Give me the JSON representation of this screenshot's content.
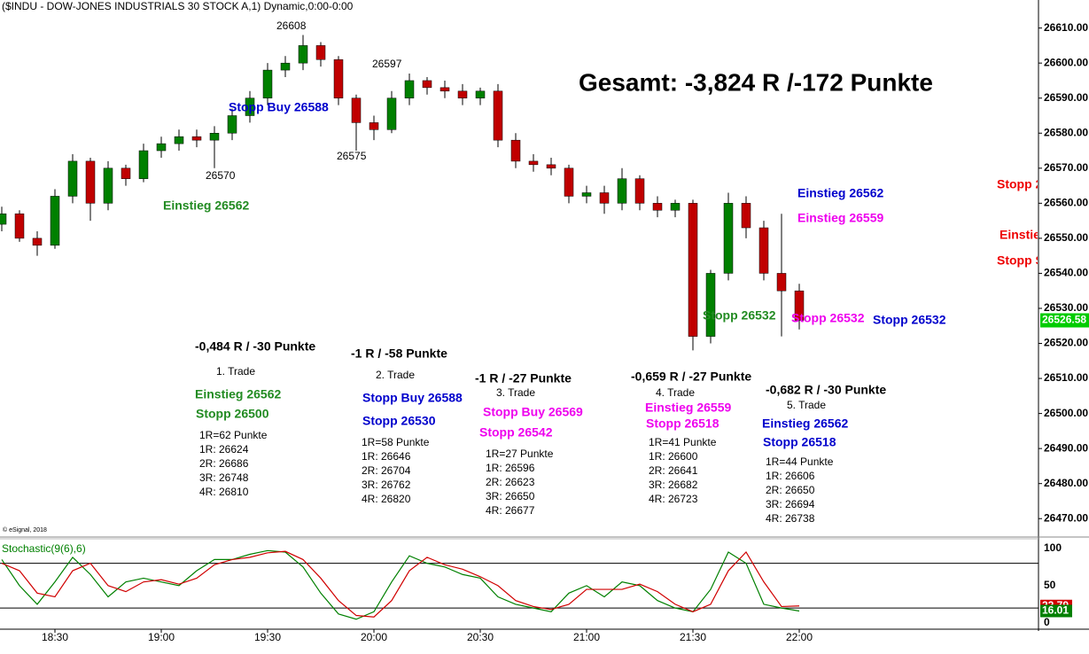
{
  "chart_data": [
    {
      "type": "candlestick",
      "title": "($INDU - DOW-JONES INDUSTRIALS 30 STOCK A,1) Dynamic,0:00-0:00",
      "categories": [
        "18:15",
        "18:20",
        "18:25",
        "18:30",
        "18:35",
        "18:40",
        "18:45",
        "18:50",
        "18:55",
        "19:00",
        "19:05",
        "19:10",
        "19:15",
        "19:20",
        "19:25",
        "19:30",
        "19:35",
        "19:40",
        "19:45",
        "19:50",
        "19:55",
        "20:00",
        "20:05",
        "20:10",
        "20:15",
        "20:20",
        "20:25",
        "20:30",
        "20:35",
        "20:40",
        "20:45",
        "20:50",
        "20:55",
        "21:00",
        "21:05",
        "21:10",
        "21:15",
        "21:20",
        "21:25",
        "21:30",
        "21:35",
        "21:40",
        "21:45",
        "21:50",
        "21:55",
        "22:00"
      ],
      "open": [
        26554,
        26557,
        26550,
        26548,
        26562,
        26572,
        26560,
        26570,
        26567,
        26575,
        26577,
        26579,
        26578,
        26580,
        26585,
        26590,
        26598,
        26600,
        26605,
        26601,
        26590,
        26583,
        26581,
        26590,
        26595,
        26593,
        26592,
        26590,
        26592,
        26578,
        26572,
        26571,
        26570,
        26562,
        26563,
        26560,
        26567,
        26560,
        26558,
        26560,
        26522,
        26540,
        26560,
        26553,
        26540,
        26535
      ],
      "high": [
        26559,
        26558,
        26552,
        26564,
        26574,
        26573,
        26572,
        26571,
        26577,
        26579,
        26581,
        26581,
        26582,
        26587,
        26592,
        26600,
        26602,
        26608,
        26606,
        26602,
        26591,
        26585,
        26592,
        26597,
        26596,
        26595,
        26594,
        26593,
        26594,
        26580,
        26574,
        26573,
        26571,
        26565,
        26565,
        26570,
        26568,
        26562,
        26561,
        26561,
        26541,
        26563,
        26562,
        26555,
        26557,
        26537
      ],
      "low": [
        26552,
        26549,
        26545,
        26547,
        26560,
        26555,
        26558,
        26565,
        26566,
        26573,
        26575,
        26576,
        26570,
        26578,
        26583,
        26588,
        26596,
        26598,
        26599,
        26588,
        26575,
        26578,
        26580,
        26588,
        26591,
        26590,
        26588,
        26588,
        26576,
        26570,
        26569,
        26568,
        26560,
        26560,
        26557,
        26558,
        26558,
        26556,
        26556,
        26518,
        26520,
        26538,
        26550,
        26538,
        26522,
        26524
      ],
      "close": [
        26557,
        26550,
        26548,
        26562,
        26572,
        26560,
        26570,
        26567,
        26575,
        26577,
        26579,
        26578,
        26580,
        26585,
        26590,
        26598,
        26600,
        26605,
        26601,
        26590,
        26583,
        26581,
        26590,
        26595,
        26593,
        26592,
        26590,
        26592,
        26578,
        26572,
        26571,
        26570,
        26562,
        26563,
        26560,
        26567,
        26560,
        26558,
        26560,
        26522,
        26540,
        26560,
        26553,
        26540,
        26535,
        26526.58
      ],
      "up_color": "#008000",
      "down_color": "#c00000",
      "ylim": [
        26465,
        26618
      ],
      "yticks": [
        {
          "value": 26470,
          "label": "26470.00"
        },
        {
          "value": 26480,
          "label": "26480.00"
        },
        {
          "value": 26490,
          "label": "26490.00"
        },
        {
          "value": 26500,
          "label": "26500.00"
        },
        {
          "value": 26510,
          "label": "26510.00"
        },
        {
          "value": 26520,
          "label": "26520.00"
        },
        {
          "value": 26530,
          "label": "26530.00"
        },
        {
          "value": 26540,
          "label": "26540.00"
        },
        {
          "value": 26550,
          "label": "26550.00"
        },
        {
          "value": 26560,
          "label": "26560.00"
        },
        {
          "value": 26570,
          "label": "26570.00"
        },
        {
          "value": 26580,
          "label": "26580.00"
        },
        {
          "value": 26590,
          "label": "26590.00"
        },
        {
          "value": 26600,
          "label": "26600.00"
        },
        {
          "value": 26610,
          "label": "26610.00"
        }
      ],
      "last_label": "26526.58",
      "last_color": "#00cc00",
      "xticks": [
        "18:30",
        "19:00",
        "19:30",
        "20:00",
        "20:30",
        "21:00",
        "21:30",
        "22:00"
      ]
    },
    {
      "type": "stochastic",
      "title": "Stochastic(9(6),6)",
      "series": [
        {
          "name": "%K",
          "color": "#008000",
          "values": [
            85,
            50,
            25,
            55,
            88,
            65,
            35,
            55,
            60,
            55,
            50,
            70,
            85,
            85,
            92,
            97,
            95,
            75,
            40,
            12,
            5,
            15,
            55,
            90,
            80,
            75,
            65,
            60,
            35,
            25,
            20,
            15,
            40,
            50,
            35,
            55,
            50,
            30,
            20,
            15,
            45,
            95,
            80,
            25,
            20,
            16.01
          ],
          "last_label": "16.01"
        },
        {
          "name": "%D",
          "color": "#d00000",
          "values": [
            80,
            70,
            40,
            35,
            70,
            80,
            50,
            42,
            55,
            58,
            52,
            60,
            78,
            85,
            88,
            94,
            96,
            85,
            60,
            30,
            10,
            8,
            30,
            70,
            88,
            78,
            72,
            62,
            50,
            30,
            22,
            18,
            25,
            45,
            45,
            45,
            52,
            42,
            25,
            15,
            25,
            70,
            95,
            55,
            22,
            22.79
          ],
          "last_label": "22.79"
        }
      ],
      "ylim": [
        -6,
        114
      ],
      "yticks": [
        0,
        50,
        100
      ],
      "levels": [
        20,
        80
      ]
    }
  ],
  "copyright": "© eSignal, 2018",
  "annotations": [
    {
      "text": "Gesamt: -3,824 R /-172 Punkte",
      "color": "#000000"
    },
    {
      "text": "26608",
      "color": "#000000"
    },
    {
      "text": "26597",
      "color": "#000000"
    },
    {
      "text": "26570",
      "color": "#000000"
    },
    {
      "text": "26575",
      "color": "#000000"
    },
    {
      "text": "Einstieg 26562",
      "color": "#228b22"
    },
    {
      "text": "Stopp Buy 26588",
      "color": "#0000cc"
    },
    {
      "text": "Einstieg 26562",
      "color": "#0000cc"
    },
    {
      "text": "Einstieg 26559",
      "color": "#ee00ee"
    },
    {
      "text": "Stopp 2",
      "color": "#ee0000"
    },
    {
      "text": "Einstie",
      "color": "#ee0000"
    },
    {
      "text": "Stopp S",
      "color": "#ee0000"
    },
    {
      "text": "Stopp 26532",
      "color": "#228b22"
    },
    {
      "text": "Stopp 26532",
      "color": "#ee00ee"
    },
    {
      "text": "Stopp 26532",
      "color": "#0000cc"
    },
    {
      "text": "-0,484 R / -30 Punkte",
      "color": "#000000"
    },
    {
      "text": "1. Trade",
      "color": "#000000"
    },
    {
      "text": "Einstieg 26562",
      "color": "#228b22"
    },
    {
      "text": "Stopp 26500",
      "color": "#228b22"
    },
    {
      "text": "1R=62 Punkte",
      "color": "#000000"
    },
    {
      "text": "1R: 26624",
      "color": "#000000"
    },
    {
      "text": "2R: 26686",
      "color": "#000000"
    },
    {
      "text": "3R: 26748",
      "color": "#000000"
    },
    {
      "text": "4R: 26810",
      "color": "#000000"
    },
    {
      "text": "-1 R / -58 Punkte",
      "color": "#000000"
    },
    {
      "text": "2. Trade",
      "color": "#000000"
    },
    {
      "text": "Stopp Buy 26588",
      "color": "#0000cc"
    },
    {
      "text": "Stopp 26530",
      "color": "#0000cc"
    },
    {
      "text": "1R=58 Punkte",
      "color": "#000000"
    },
    {
      "text": "1R: 26646",
      "color": "#000000"
    },
    {
      "text": "2R: 26704",
      "color": "#000000"
    },
    {
      "text": "3R: 26762",
      "color": "#000000"
    },
    {
      "text": "4R: 26820",
      "color": "#000000"
    },
    {
      "text": "-1 R / -27 Punkte",
      "color": "#000000"
    },
    {
      "text": "3. Trade",
      "color": "#000000"
    },
    {
      "text": "Stopp Buy 26569",
      "color": "#ee00ee"
    },
    {
      "text": "Stopp 26542",
      "color": "#ee00ee"
    },
    {
      "text": "1R=27 Punkte",
      "color": "#000000"
    },
    {
      "text": "1R: 26596",
      "color": "#000000"
    },
    {
      "text": "2R: 26623",
      "color": "#000000"
    },
    {
      "text": "3R: 26650",
      "color": "#000000"
    },
    {
      "text": "4R: 26677",
      "color": "#000000"
    },
    {
      "text": "-0,659 R / -27 Punkte",
      "color": "#000000"
    },
    {
      "text": "4. Trade",
      "color": "#000000"
    },
    {
      "text": "Einstieg 26559",
      "color": "#ee00ee"
    },
    {
      "text": "Stopp 26518",
      "color": "#ee00ee"
    },
    {
      "text": "1R=41 Punkte",
      "color": "#000000"
    },
    {
      "text": "1R: 26600",
      "color": "#000000"
    },
    {
      "text": "2R: 26641",
      "color": "#000000"
    },
    {
      "text": "3R: 26682",
      "color": "#000000"
    },
    {
      "text": "4R: 26723",
      "color": "#000000"
    },
    {
      "text": "-0,682 R / -30 Punkte",
      "color": "#000000"
    },
    {
      "text": "5. Trade",
      "color": "#000000"
    },
    {
      "text": "Einstieg 26562",
      "color": "#0000cc"
    },
    {
      "text": "Stopp 26518",
      "color": "#0000cc"
    },
    {
      "text": "1R=44 Punkte",
      "color": "#000000"
    },
    {
      "text": "1R: 26606",
      "color": "#000000"
    },
    {
      "text": "2R: 26650",
      "color": "#000000"
    },
    {
      "text": "3R: 26694",
      "color": "#000000"
    },
    {
      "text": "4R: 26738",
      "color": "#000000"
    }
  ]
}
